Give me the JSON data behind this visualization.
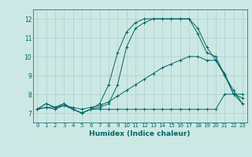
{
  "xlabel": "Humidex (Indice chaleur)",
  "ylabel": "",
  "xlim": [
    -0.5,
    23.5
  ],
  "ylim": [
    6.5,
    12.5
  ],
  "yticks": [
    7,
    8,
    9,
    10,
    11,
    12
  ],
  "xticks": [
    0,
    1,
    2,
    3,
    4,
    5,
    6,
    7,
    8,
    9,
    10,
    11,
    12,
    13,
    14,
    15,
    16,
    17,
    18,
    19,
    20,
    21,
    22,
    23
  ],
  "bg_color": "#cce8e4",
  "grid_color": "#aacfcb",
  "line_color": "#006666",
  "series": [
    [
      7.2,
      7.5,
      7.3,
      7.5,
      7.2,
      7.0,
      7.2,
      7.2,
      7.2,
      7.2,
      7.2,
      7.2,
      7.2,
      7.2,
      7.2,
      7.2,
      7.2,
      7.2,
      7.2,
      7.2,
      7.2,
      8.0,
      8.0,
      7.5
    ],
    [
      7.2,
      7.5,
      7.3,
      7.5,
      7.2,
      7.0,
      7.2,
      7.5,
      8.5,
      10.2,
      11.3,
      11.8,
      12.0,
      12.0,
      12.0,
      12.0,
      12.0,
      12.0,
      11.2,
      10.2,
      10.0,
      9.0,
      8.2,
      7.5
    ],
    [
      7.2,
      7.3,
      7.2,
      7.4,
      7.2,
      7.0,
      7.2,
      7.3,
      7.5,
      8.5,
      10.5,
      11.5,
      11.8,
      12.0,
      12.0,
      12.0,
      12.0,
      12.0,
      11.5,
      10.5,
      9.8,
      9.0,
      8.0,
      7.8
    ],
    [
      7.2,
      7.3,
      7.3,
      7.4,
      7.3,
      7.2,
      7.3,
      7.4,
      7.6,
      7.9,
      8.2,
      8.5,
      8.8,
      9.1,
      9.4,
      9.6,
      9.8,
      10.0,
      10.0,
      9.8,
      9.8,
      9.1,
      8.0,
      8.0
    ]
  ],
  "figsize": [
    3.2,
    2.0
  ],
  "dpi": 100
}
